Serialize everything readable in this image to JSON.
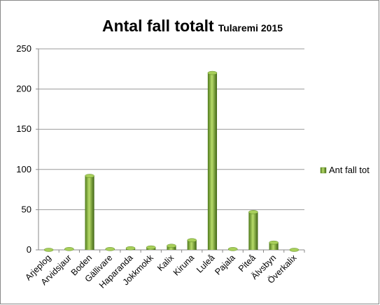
{
  "chart_data": {
    "type": "bar",
    "title": "Antal fall totalt",
    "subtitle": "Tularemi 2015",
    "categories": [
      "Arjeplog",
      "Arvidsjaur",
      "Boden",
      "Gällivare",
      "Haparanda",
      "Jokkmokk",
      "Kalix",
      "Kiruna",
      "Luleå",
      "Pajala",
      "Piteå",
      "Älvsbyn",
      "Överkalix"
    ],
    "series": [
      {
        "name": "Ant fall tot",
        "color": "#7aa832",
        "values": [
          0,
          1,
          92,
          1,
          2,
          3,
          5,
          12,
          220,
          1,
          47,
          9,
          0
        ]
      }
    ],
    "ylim": [
      0,
      250
    ],
    "yticks": [
      0,
      50,
      100,
      150,
      200,
      250
    ],
    "grid": true,
    "legend": "right"
  }
}
